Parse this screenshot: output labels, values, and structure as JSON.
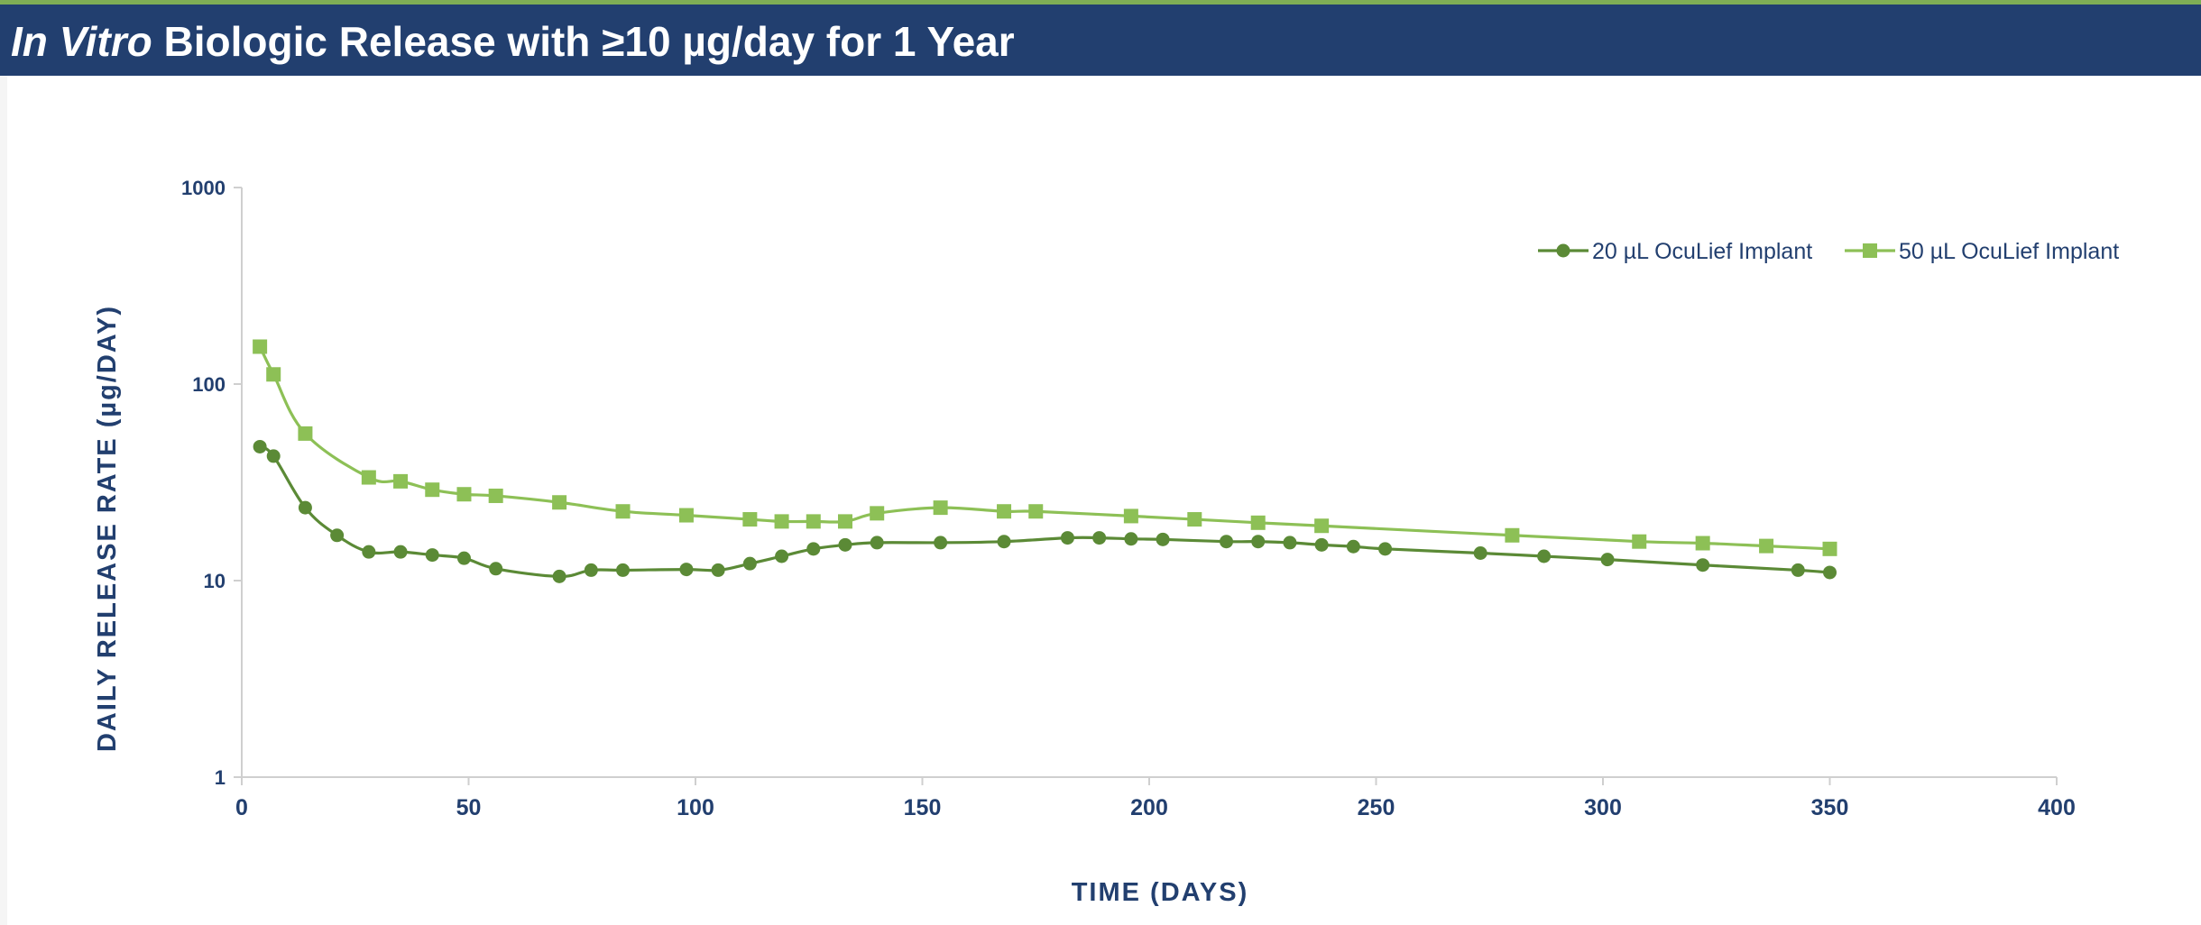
{
  "header": {
    "title_italic": "In Vitro",
    "title_rest": " Biologic Release with ≥10 µg/day for 1 Year"
  },
  "colors": {
    "header_bg": "#223f6f",
    "accent_rule": "#7fae55",
    "text_navy": "#223f6f",
    "series_20": "#5b8a36",
    "series_50": "#8dc056"
  },
  "chart_data": {
    "type": "line",
    "xlabel": "TIME (DAYS)",
    "ylabel": "DAILY RELEASE RATE (µg/DAY)",
    "xlim": [
      0,
      400
    ],
    "ylim": [
      1,
      1000
    ],
    "y_scale": "log",
    "x_ticks": [
      0,
      50,
      100,
      150,
      200,
      250,
      300,
      350,
      400
    ],
    "y_ticks": [
      1,
      10,
      100,
      1000
    ],
    "x_tick_labels": [
      "0",
      "50",
      "100",
      "150",
      "200",
      "250",
      "300",
      "350",
      "400"
    ],
    "y_tick_labels": [
      "1",
      "10",
      "100",
      "1000"
    ],
    "grid": false,
    "legend_position": "top-right",
    "series": [
      {
        "name": "20 µL OcuLief Implant",
        "marker": "circle",
        "color": "#5b8a36",
        "x": [
          4,
          7,
          14,
          21,
          28,
          35,
          42,
          49,
          56,
          70,
          77,
          84,
          98,
          105,
          112,
          119,
          126,
          133,
          140,
          154,
          168,
          182,
          189,
          196,
          203,
          217,
          224,
          231,
          238,
          245,
          252,
          273,
          287,
          301,
          322,
          343,
          350
        ],
        "y": [
          48,
          43,
          23.5,
          17,
          14,
          14,
          13.5,
          13,
          11.5,
          10.5,
          11.3,
          11.3,
          11.4,
          11.3,
          12.2,
          13.3,
          14.5,
          15.2,
          15.6,
          15.6,
          15.8,
          16.5,
          16.5,
          16.3,
          16.2,
          15.8,
          15.8,
          15.6,
          15.2,
          14.9,
          14.5,
          13.8,
          13.3,
          12.8,
          12,
          11.3,
          11
        ]
      },
      {
        "name": "50 µL OcuLief Implant",
        "marker": "square",
        "color": "#8dc056",
        "x": [
          4,
          7,
          14,
          28,
          35,
          42,
          49,
          56,
          70,
          84,
          98,
          112,
          119,
          126,
          133,
          140,
          154,
          168,
          175,
          196,
          210,
          224,
          238,
          280,
          308,
          322,
          336,
          350
        ],
        "y": [
          155,
          112,
          56,
          33.5,
          32,
          29,
          27.5,
          27,
          25,
          22.5,
          21.5,
          20.5,
          20,
          20,
          20,
          22,
          23.5,
          22.5,
          22.5,
          21.3,
          20.5,
          19.7,
          19,
          17,
          15.8,
          15.5,
          15,
          14.5
        ]
      }
    ]
  }
}
